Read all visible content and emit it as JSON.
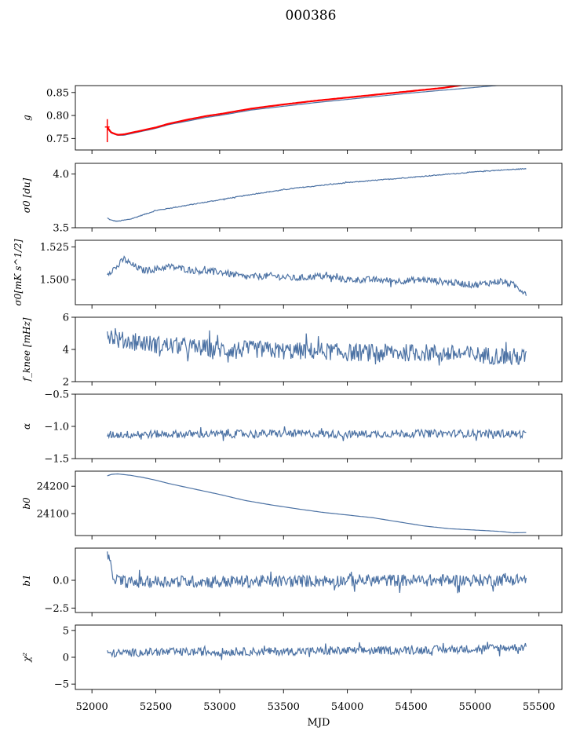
{
  "title": "000386",
  "x_label": "MJD",
  "x_ticks": [
    "52000",
    "52500",
    "53000",
    "53500",
    "54000",
    "54500",
    "55000",
    "55500"
  ],
  "line_color": "#4c72a4",
  "overlay_color": "#ff0000",
  "chart_data": [
    {
      "type": "line",
      "ylabel": "g",
      "xlim": [
        51870,
        55680
      ],
      "ylim": [
        0.725,
        0.865
      ],
      "yticks": [
        0.75,
        0.8,
        0.85
      ],
      "ytick_labels": [
        "0.75",
        "0.80",
        "0.85"
      ],
      "series": [
        {
          "x": [
            52120,
            52150,
            52200,
            52250,
            52300,
            52400,
            52500,
            52600,
            52750,
            52900,
            53000,
            53250,
            53500,
            53750,
            54000,
            54250,
            54500,
            54750,
            55000,
            55200
          ],
          "y": [
            0.772,
            0.762,
            0.757,
            0.757,
            0.76,
            0.766,
            0.772,
            0.78,
            0.788,
            0.796,
            0.8,
            0.812,
            0.82,
            0.828,
            0.835,
            0.842,
            0.849,
            0.855,
            0.861,
            0.866
          ],
          "color": "#4c72a4"
        },
        {
          "x": [
            52120,
            52150,
            52200,
            52250,
            52300,
            52400,
            52500,
            52600,
            52750,
            52900,
            53000,
            53250,
            53500,
            53750,
            54000,
            54250,
            54500,
            54750,
            54900
          ],
          "y": [
            0.775,
            0.763,
            0.758,
            0.759,
            0.762,
            0.768,
            0.774,
            0.782,
            0.791,
            0.799,
            0.803,
            0.815,
            0.824,
            0.832,
            0.839,
            0.846,
            0.853,
            0.86,
            0.866
          ],
          "color": "#ff0000"
        }
      ]
    },
    {
      "type": "line",
      "ylabel": "σ0 [du]",
      "xlim": [
        51870,
        55680
      ],
      "ylim": [
        3.5,
        4.1
      ],
      "yticks": [
        3.5,
        4.0
      ],
      "ytick_labels": [
        "3.5",
        "4.0"
      ],
      "series": [
        {
          "x": [
            52120,
            52150,
            52200,
            52300,
            52400,
            52500,
            52700,
            53000,
            53300,
            53600,
            54000,
            54400,
            54800,
            55100,
            55400
          ],
          "y": [
            3.59,
            3.57,
            3.56,
            3.58,
            3.62,
            3.66,
            3.7,
            3.76,
            3.82,
            3.87,
            3.92,
            3.96,
            4.0,
            4.03,
            4.05
          ],
          "color": "#4c72a4"
        }
      ]
    },
    {
      "type": "line",
      "ylabel": "σ0[mK s^1/2]",
      "xlim": [
        51870,
        55680
      ],
      "ylim": [
        1.481,
        1.53
      ],
      "yticks": [
        1.5,
        1.525
      ],
      "ytick_labels": [
        "1.500",
        "1.525"
      ],
      "series": [
        {
          "x": [
            52120,
            52200,
            52250,
            52300,
            52400,
            52500,
            52600,
            52800,
            53000,
            53200,
            53400,
            53600,
            53800,
            54000,
            54200,
            54400,
            54600,
            54800,
            55000,
            55200,
            55300,
            55400
          ],
          "y": [
            1.505,
            1.51,
            1.516,
            1.512,
            1.507,
            1.508,
            1.51,
            1.507,
            1.506,
            1.502,
            1.503,
            1.501,
            1.503,
            1.5,
            1.5,
            1.499,
            1.5,
            1.498,
            1.496,
            1.499,
            1.496,
            1.49
          ],
          "color": "#4c72a4"
        }
      ]
    },
    {
      "type": "line",
      "ylabel": "f_knee [mHz]",
      "xlim": [
        51870,
        55680
      ],
      "ylim": [
        2,
        6
      ],
      "yticks": [
        2,
        4,
        6
      ],
      "ytick_labels": [
        "2",
        "4",
        "6"
      ],
      "series": [
        {
          "x": [
            52120,
            52200,
            52300,
            52400,
            52500,
            52700,
            53000,
            53300,
            53500,
            53800,
            54000,
            54300,
            54600,
            54900,
            55200,
            55400
          ],
          "y": [
            5.0,
            4.6,
            4.5,
            4.4,
            4.3,
            4.2,
            4.0,
            4.0,
            3.9,
            3.9,
            3.8,
            3.8,
            3.8,
            3.7,
            3.6,
            3.5
          ],
          "color": "#4c72a4"
        }
      ]
    },
    {
      "type": "line",
      "ylabel": "α",
      "xlim": [
        51870,
        55680
      ],
      "ylim": [
        -1.5,
        -0.5
      ],
      "yticks": [
        -1.5,
        -1.0,
        -0.5
      ],
      "ytick_labels": [
        "−1.5",
        "−1.0",
        "−0.5"
      ],
      "series": [
        {
          "x": [
            52120,
            52500,
            53000,
            53500,
            54000,
            54500,
            55000,
            55400
          ],
          "y": [
            -1.13,
            -1.12,
            -1.12,
            -1.11,
            -1.12,
            -1.11,
            -1.11,
            -1.12
          ],
          "color": "#4c72a4"
        }
      ]
    },
    {
      "type": "line",
      "ylabel": "b0",
      "xlim": [
        51870,
        55680
      ],
      "ylim": [
        24020,
        24255
      ],
      "yticks": [
        24100,
        24200
      ],
      "ytick_labels": [
        "24100",
        "24200"
      ],
      "series": [
        {
          "x": [
            52120,
            52150,
            52200,
            52300,
            52400,
            52500,
            52600,
            52800,
            53000,
            53200,
            53400,
            53600,
            53800,
            54000,
            54200,
            54400,
            54600,
            54800,
            55000,
            55200,
            55300,
            55400
          ],
          "y": [
            24238,
            24243,
            24245,
            24240,
            24232,
            24222,
            24210,
            24190,
            24170,
            24148,
            24132,
            24118,
            24105,
            24095,
            24085,
            24070,
            24055,
            24045,
            24040,
            24035,
            24030,
            24031
          ],
          "color": "#4c72a4"
        }
      ]
    },
    {
      "type": "line",
      "ylabel": "b1",
      "xlim": [
        51870,
        55680
      ],
      "ylim": [
        -2.9,
        2.9
      ],
      "yticks": [
        -2.5,
        0.0
      ],
      "ytick_labels": [
        "−2.5",
        "0.0"
      ],
      "series": [
        {
          "x": [
            52120,
            52140,
            52160,
            52200,
            52300,
            52500,
            53000,
            53500,
            54000,
            54500,
            55000,
            55400
          ],
          "y": [
            2.5,
            1.5,
            0.5,
            0.0,
            -0.2,
            -0.1,
            -0.1,
            -0.1,
            0.0,
            0.0,
            0.0,
            0.1
          ],
          "color": "#4c72a4"
        }
      ]
    },
    {
      "type": "line",
      "ylabel": "χ²",
      "xlim": [
        51870,
        55680
      ],
      "ylim": [
        -6,
        6
      ],
      "yticks": [
        -5,
        0,
        5
      ],
      "ytick_labels": [
        "−5",
        "0",
        "5"
      ],
      "series": [
        {
          "x": [
            52120,
            52500,
            53000,
            53500,
            54000,
            54500,
            55000,
            55400
          ],
          "y": [
            0.7,
            1.0,
            1.0,
            1.1,
            1.2,
            1.3,
            1.6,
            1.9
          ],
          "color": "#4c72a4"
        }
      ]
    }
  ]
}
